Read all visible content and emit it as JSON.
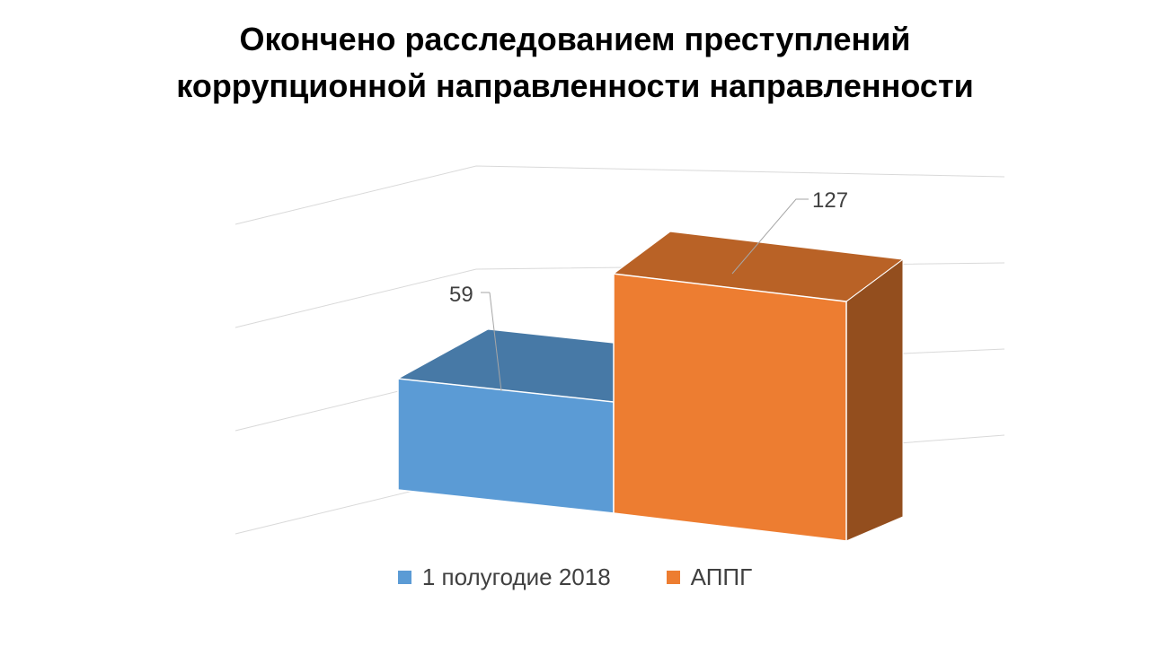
{
  "chart_data": {
    "type": "bar",
    "variant": "3d-column",
    "title_lines": [
      "Окончено расследованием преступлений",
      "коррупционной направленности направленности"
    ],
    "categories": [
      ""
    ],
    "series": [
      {
        "name": "1 полугодие 2018",
        "values": [
          59
        ],
        "color": "#5B9BD5",
        "data_label": "59"
      },
      {
        "name": "АППГ",
        "values": [
          127
        ],
        "color": "#ED7D31",
        "data_label": "127"
      }
    ],
    "ylim": [
      0,
      200
    ],
    "grid": true,
    "legend_position": "bottom"
  }
}
